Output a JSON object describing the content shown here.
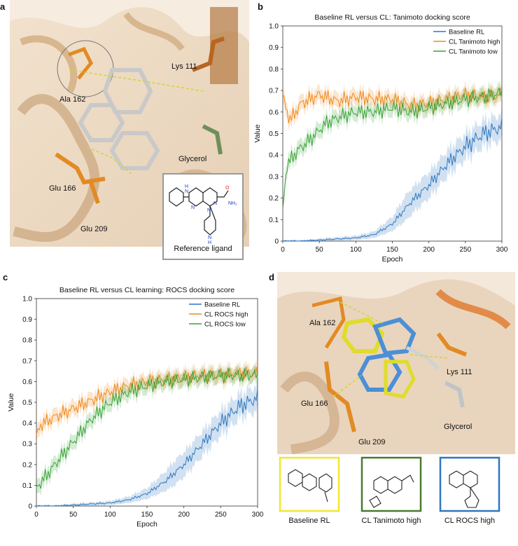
{
  "panels": {
    "a": {
      "letter": "a",
      "residues": [
        "Ala 162",
        "Lys 111",
        "Glycerol",
        "Glu 166",
        "Glu 209"
      ],
      "inset_caption": "Reference ligand",
      "inset_atoms": [
        "N",
        "H",
        "N",
        "N",
        "N",
        "O",
        "NH₂",
        "N",
        "H"
      ]
    },
    "b": {
      "letter": "b"
    },
    "c": {
      "letter": "c"
    },
    "d": {
      "letter": "d",
      "residues": [
        "Ala 162",
        "Lys 111",
        "Glu 166",
        "Glu 209",
        "Glycerol"
      ],
      "inset_captions": [
        "Baseline RL",
        "CL Tanimoto high",
        "CL ROCS high"
      ],
      "inset_colors": [
        "#f2e532",
        "#4a7a2e",
        "#2f77c0"
      ]
    }
  },
  "colors": {
    "baseline": "#2f77c0",
    "high": "#f28a1c",
    "low": "#3aa43a"
  },
  "chart_data": [
    {
      "type": "line",
      "title": "Baseline RL versus CL: Tanimoto docking score",
      "xlabel": "Epoch",
      "ylabel": "Value",
      "xlim": [
        0,
        300
      ],
      "ylim": [
        0,
        1.0
      ],
      "xticks": [
        0,
        50,
        100,
        150,
        200,
        250,
        300
      ],
      "yticks": [
        0,
        0.1,
        0.2,
        0.3,
        0.4,
        0.5,
        0.6,
        0.7,
        0.8,
        0.9,
        1.0
      ],
      "legend_position": "top-right",
      "series": [
        {
          "name": "Baseline RL",
          "x": [
            0,
            25,
            50,
            75,
            100,
            125,
            150,
            175,
            200,
            225,
            250,
            275,
            300
          ],
          "values": [
            0.0,
            0.0,
            0.005,
            0.01,
            0.015,
            0.03,
            0.08,
            0.18,
            0.26,
            0.36,
            0.44,
            0.5,
            0.53
          ]
        },
        {
          "name": "CL Tanimoto high",
          "x": [
            0,
            10,
            25,
            50,
            75,
            100,
            125,
            150,
            175,
            200,
            225,
            250,
            275,
            300
          ],
          "values": [
            0.67,
            0.56,
            0.64,
            0.68,
            0.65,
            0.67,
            0.66,
            0.66,
            0.63,
            0.64,
            0.66,
            0.68,
            0.67,
            0.68
          ]
        },
        {
          "name": "CL Tanimoto low",
          "x": [
            0,
            5,
            20,
            40,
            60,
            80,
            100,
            125,
            150,
            175,
            200,
            225,
            250,
            275,
            300
          ],
          "values": [
            0.14,
            0.35,
            0.42,
            0.48,
            0.55,
            0.58,
            0.6,
            0.6,
            0.62,
            0.6,
            0.62,
            0.64,
            0.66,
            0.67,
            0.69
          ]
        }
      ]
    },
    {
      "type": "line",
      "title": "Baseline RL versus CL learning: ROCS docking score",
      "xlabel": "Epoch",
      "ylabel": "Value",
      "xlim": [
        0,
        300
      ],
      "ylim": [
        0,
        1.0
      ],
      "xticks": [
        0,
        50,
        100,
        150,
        200,
        250,
        300
      ],
      "yticks": [
        0,
        0.1,
        0.2,
        0.3,
        0.4,
        0.5,
        0.6,
        0.7,
        0.8,
        0.9,
        1.0
      ],
      "legend_position": "top-right",
      "series": [
        {
          "name": "Baseline RL",
          "x": [
            0,
            25,
            50,
            75,
            100,
            125,
            150,
            175,
            200,
            225,
            250,
            275,
            300
          ],
          "values": [
            0.0,
            0.0,
            0.005,
            0.01,
            0.015,
            0.03,
            0.06,
            0.12,
            0.2,
            0.3,
            0.4,
            0.48,
            0.52
          ]
        },
        {
          "name": "CL ROCS high",
          "x": [
            0,
            5,
            25,
            50,
            75,
            100,
            125,
            150,
            175,
            200,
            225,
            250,
            275,
            300
          ],
          "values": [
            0.33,
            0.39,
            0.43,
            0.47,
            0.51,
            0.55,
            0.58,
            0.6,
            0.61,
            0.62,
            0.63,
            0.63,
            0.64,
            0.64
          ]
        },
        {
          "name": "CL ROCS low",
          "x": [
            0,
            10,
            25,
            50,
            75,
            100,
            125,
            150,
            175,
            200,
            225,
            250,
            275,
            300
          ],
          "values": [
            0.09,
            0.13,
            0.2,
            0.31,
            0.42,
            0.5,
            0.55,
            0.58,
            0.6,
            0.61,
            0.62,
            0.63,
            0.63,
            0.63
          ]
        }
      ]
    }
  ]
}
